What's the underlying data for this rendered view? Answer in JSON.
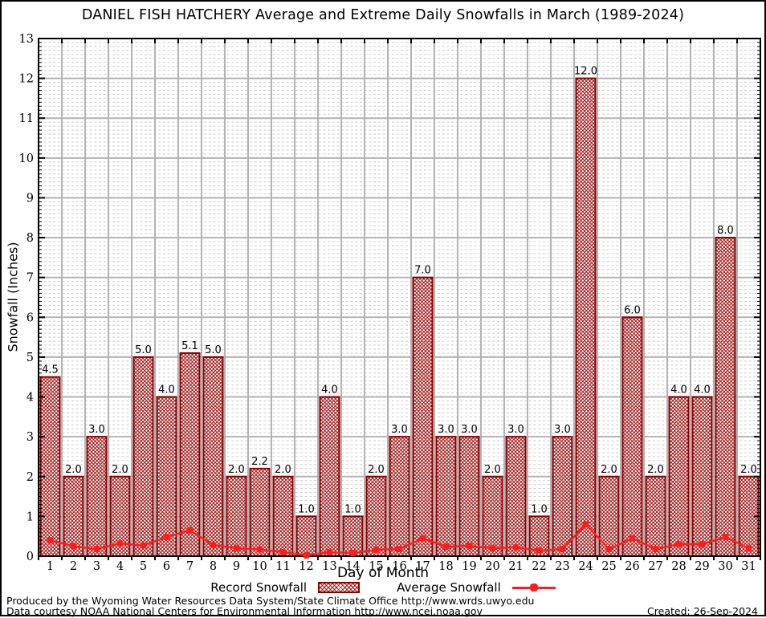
{
  "title": "DANIEL FISH HATCHERY Average and Extreme Daily Snowfalls in March (1989-2024)",
  "chart_data": {
    "type": "bar",
    "title": "DANIEL FISH HATCHERY Average and Extreme Daily Snowfalls in March (1989-2024)",
    "xlabel": "Day of Month",
    "ylabel": "Snowfall (Inches)",
    "ylim": [
      0,
      13
    ],
    "yticks": [
      0,
      1,
      2,
      3,
      4,
      5,
      6,
      7,
      8,
      9,
      10,
      11,
      12,
      13
    ],
    "grid": true,
    "legend_position": "bottom",
    "categories": [
      "1",
      "2",
      "3",
      "4",
      "5",
      "6",
      "7",
      "8",
      "9",
      "10",
      "11",
      "12",
      "13",
      "14",
      "15",
      "16",
      "17",
      "18",
      "19",
      "20",
      "21",
      "22",
      "23",
      "24",
      "25",
      "26",
      "27",
      "28",
      "29",
      "30",
      "31"
    ],
    "series": [
      {
        "name": "Record Snowfall",
        "type": "bar",
        "values": [
          4.5,
          2.0,
          3.0,
          2.0,
          5.0,
          4.0,
          5.1,
          5.0,
          2.0,
          2.2,
          2.0,
          1.0,
          4.0,
          1.0,
          2.0,
          3.0,
          7.0,
          3.0,
          3.0,
          2.0,
          3.0,
          1.0,
          3.0,
          12.0,
          2.0,
          6.0,
          2.0,
          4.0,
          4.0,
          8.0,
          2.0
        ],
        "bar_labels": [
          "4.5",
          "2.0",
          "3.0",
          "2.0",
          "5.0",
          "4.0",
          "5.1",
          "5.0",
          "2.0",
          "2.2",
          "2.0",
          "1.0",
          "4.0",
          "1.0",
          "2.0",
          "3.0",
          "7.0",
          "3.0",
          "3.0",
          "2.0",
          "3.0",
          "1.0",
          "3.0",
          "12.0",
          "2.0",
          "6.0",
          "2.0",
          "4.0",
          "4.0",
          "8.0",
          "2.0"
        ]
      },
      {
        "name": "Average Snowfall",
        "type": "line",
        "values": [
          0.4,
          0.25,
          0.18,
          0.32,
          0.27,
          0.48,
          0.65,
          0.28,
          0.2,
          0.17,
          0.1,
          0.02,
          0.1,
          0.08,
          0.16,
          0.18,
          0.45,
          0.24,
          0.26,
          0.2,
          0.22,
          0.14,
          0.18,
          0.8,
          0.18,
          0.45,
          0.18,
          0.3,
          0.3,
          0.48,
          0.2
        ]
      }
    ]
  },
  "legend": {
    "record_label": "Record Snowfall",
    "average_label": "Average Snowfall"
  },
  "footer": {
    "line1": "Produced by the Wyoming Water Resources Data System/State Climate Office http://www.wrds.uwyo.edu",
    "line2": "Data courtesy NOAA National Centers for Environmental Information http://www.ncei.noaa.gov",
    "created": "Created: 26-Sep-2024"
  },
  "colors": {
    "bar_outline": "#8b0000",
    "bar_hatch": "#9a1212",
    "avg_line": "#ff1c1c",
    "major_grid": "#b3b3b3",
    "minor_grid": "#cccccc",
    "axis": "#000000",
    "text": "#000000"
  }
}
